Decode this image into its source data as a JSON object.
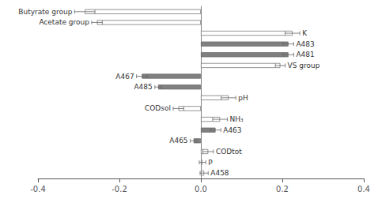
{
  "chart_data": {
    "type": "bar",
    "orientation": "horizontal",
    "categories": [
      "Butyrate group",
      "Acetate group",
      "K",
      "A483",
      "A481",
      "VS group",
      "A467",
      "A485",
      "pH",
      "CODsol",
      "NH₃",
      "A463",
      "A465",
      "CODtot",
      "P",
      "A458"
    ],
    "values": [
      -0.285,
      -0.255,
      0.225,
      0.215,
      0.215,
      0.195,
      -0.145,
      -0.105,
      0.068,
      -0.055,
      0.047,
      0.036,
      -0.018,
      0.018,
      0.004,
      0.008
    ],
    "errors": [
      0.025,
      0.013,
      0.018,
      0.013,
      0.013,
      0.012,
      0.013,
      0.008,
      0.018,
      0.013,
      0.018,
      0.013,
      0.008,
      0.013,
      0.008,
      0.01
    ],
    "colors": [
      "white",
      "white",
      "white",
      "gray",
      "gray",
      "white",
      "gray",
      "gray",
      "white",
      "white",
      "white",
      "gray",
      "gray",
      "white",
      "white",
      "white"
    ],
    "xlim": [
      -0.4,
      0.4
    ],
    "xticks": [
      -0.4,
      -0.2,
      {
        "value": 0,
        "label": "0.0"
      },
      0.2,
      0.4
    ],
    "tick_labels": "x",
    "grid": false
  }
}
